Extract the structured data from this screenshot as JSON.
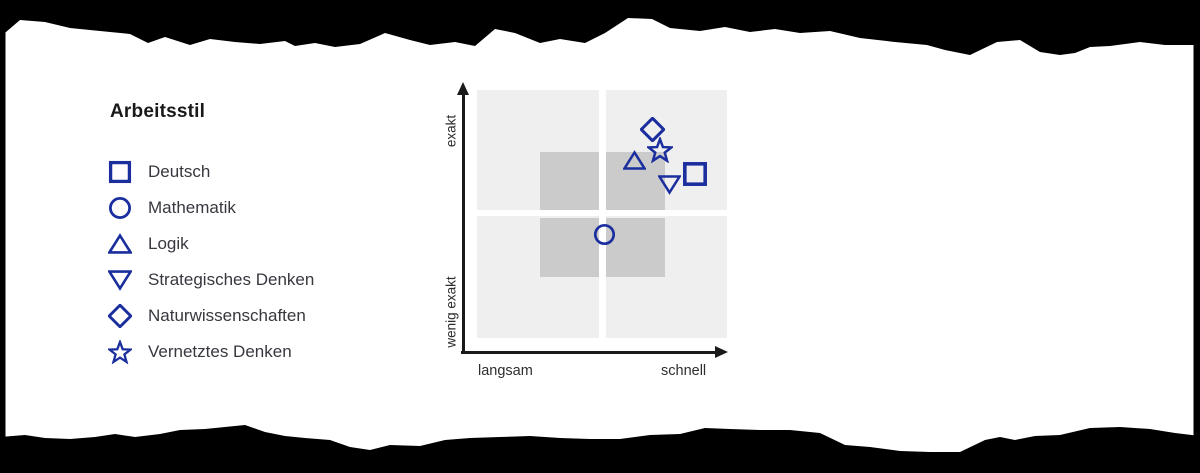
{
  "legend": {
    "title": "Arbeitsstil",
    "items": [
      {
        "label": "Deutsch",
        "marker": "square"
      },
      {
        "label": "Mathematik",
        "marker": "circle"
      },
      {
        "label": "Logik",
        "marker": "triangle-up"
      },
      {
        "label": "Strategisches Denken",
        "marker": "triangle-down"
      },
      {
        "label": "Naturwissenschaften",
        "marker": "diamond"
      },
      {
        "label": "Vernetztes Denken",
        "marker": "star"
      }
    ]
  },
  "chart_data": {
    "type": "scatter",
    "title": "Arbeitsstil",
    "x_axis": {
      "label_left": "langsam",
      "label_right": "schnell",
      "range": [
        0,
        1
      ]
    },
    "y_axis": {
      "label_bottom": "wenig exakt",
      "label_top": "exakt",
      "range": [
        0,
        1
      ]
    },
    "legend_position": "left",
    "grid": "quadrants-with-darker-center-cells",
    "points": [
      {
        "name": "Deutsch",
        "marker": "square",
        "x": 0.87,
        "y": 0.68
      },
      {
        "name": "Mathematik",
        "marker": "circle",
        "x": 0.51,
        "y": 0.45
      },
      {
        "name": "Logik",
        "marker": "triangle-up",
        "x": 0.63,
        "y": 0.73
      },
      {
        "name": "Strategisches Denken",
        "marker": "triangle-down",
        "x": 0.77,
        "y": 0.64
      },
      {
        "name": "Naturwissenschaften",
        "marker": "diamond",
        "x": 0.7,
        "y": 0.85
      },
      {
        "name": "Vernetztes Denken",
        "marker": "star",
        "x": 0.73,
        "y": 0.77
      }
    ],
    "colors": {
      "marker": "#1b2e9e",
      "quadrant_light": "#f0efef",
      "quadrant_dark": "#cbcbcb",
      "axis": "#1a1a1a",
      "label_text": "#2e2e2e",
      "torn_edge": "#000000",
      "paper": "#ffffff"
    }
  }
}
